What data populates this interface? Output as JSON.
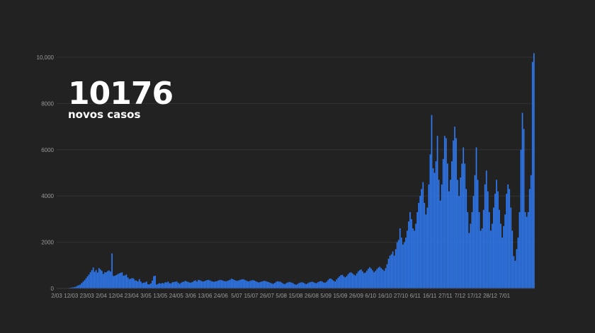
{
  "headline": {
    "value": "10176",
    "label": "novos casos"
  },
  "colors": {
    "background": "#222223",
    "bar": "#2f7bf5",
    "grid": "#333336",
    "tick": "#9a9a9a"
  },
  "chart_data": {
    "type": "bar",
    "title": "",
    "xlabel": "",
    "ylabel": "",
    "ylim": [
      0,
      10400
    ],
    "grid": true,
    "legend": "none",
    "y_ticks": [
      "0",
      "2000",
      "4000",
      "6000",
      "8000",
      "10,000"
    ],
    "y_tick_values": [
      0,
      2000,
      4000,
      6000,
      8000,
      10000
    ],
    "x_tick_labels": [
      "2/03",
      "12/03",
      "23/03",
      "2/04",
      "12/04",
      "23/04",
      "3/05",
      "13/05",
      "24/05",
      "3/06",
      "13/06",
      "24/06",
      "5/07",
      "15/07",
      "26/07",
      "5/08",
      "15/08",
      "26/08",
      "5/09",
      "15/09",
      "26/09",
      "6/10",
      "16/10",
      "27/10",
      "6/11",
      "16/11",
      "27/11",
      "7/12",
      "17/12",
      "28/12",
      "7/01"
    ],
    "x_tick_day_index": [
      0,
      10,
      21,
      31,
      41,
      52,
      62,
      72,
      83,
      93,
      103,
      114,
      125,
      135,
      146,
      156,
      166,
      177,
      187,
      197,
      208,
      218,
      228,
      239,
      249,
      259,
      270,
      280,
      290,
      301,
      311
    ],
    "series": [
      {
        "values": [
          2,
          2,
          2,
          3,
          4,
          6,
          8,
          12,
          20,
          30,
          40,
          50,
          60,
          78,
          112,
          142,
          168,
          238,
          296,
          360,
          440,
          520,
          600,
          700,
          790,
          906,
          720,
          800,
          690,
          880,
          820,
          760,
          630,
          700,
          700,
          750,
          780,
          730,
          1516,
          540,
          550,
          580,
          620,
          650,
          680,
          700,
          550,
          570,
          600,
          480,
          410,
          420,
          450,
          430,
          350,
          340,
          300,
          400,
          300,
          230,
          250,
          260,
          300,
          180,
          180,
          220,
          340,
          530,
          550,
          170,
          200,
          230,
          210,
          240,
          220,
          270,
          260,
          300,
          230,
          220,
          270,
          280,
          290,
          300,
          250,
          200,
          250,
          280,
          300,
          330,
          300,
          280,
          250,
          260,
          280,
          330,
          350,
          300,
          370,
          360,
          330,
          300,
          310,
          340,
          360,
          370,
          350,
          320,
          300,
          290,
          310,
          320,
          350,
          370,
          360,
          340,
          320,
          310,
          330,
          350,
          380,
          420,
          400,
          370,
          340,
          330,
          350,
          370,
          390,
          400,
          380,
          350,
          320,
          310,
          330,
          350,
          360,
          340,
          310,
          280,
          260,
          280,
          300,
          320,
          330,
          310,
          290,
          270,
          240,
          220,
          200,
          240,
          290,
          310,
          300,
          290,
          250,
          210,
          190,
          230,
          260,
          280,
          270,
          250,
          220,
          180,
          160,
          200,
          240,
          260,
          270,
          250,
          210,
          190,
          230,
          260,
          280,
          290,
          270,
          240,
          230,
          270,
          300,
          320,
          300,
          260,
          250,
          290,
          360,
          420,
          430,
          380,
          330,
          300,
          390,
          460,
          520,
          580,
          590,
          520,
          480,
          540,
          620,
          680,
          700,
          650,
          600,
          560,
          650,
          740,
          790,
          820,
          740,
          660,
          690,
          770,
          850,
          920,
          860,
          780,
          700,
          760,
          840,
          900,
          940,
          880,
          820,
          760,
          880,
          1050,
          1280,
          1420,
          1480,
          1600,
          1420,
          1700,
          2000,
          2100,
          2600,
          2200,
          1900,
          2000,
          2200,
          2500,
          2900,
          3300,
          3000,
          2600,
          2500,
          2800,
          3300,
          3700,
          4000,
          4300,
          4600,
          3700,
          3200,
          3500,
          4500,
          5800,
          7500,
          5200,
          5000,
          5500,
          6600,
          4700,
          3800,
          4500,
          5600,
          6600,
          6500,
          5400,
          4200,
          4700,
          5500,
          6400,
          7000,
          6500,
          4700,
          4000,
          4800,
          5400,
          6100,
          5400,
          4300,
          3300,
          2400,
          2800,
          3300,
          4000,
          4900,
          6100,
          4700,
          3300,
          2500,
          2600,
          3400,
          4500,
          5100,
          4200,
          3300,
          2500,
          2800,
          3500,
          4100,
          4700,
          4200,
          3400,
          2800,
          2200,
          2700,
          3200,
          4100,
          4500,
          4300,
          3500,
          2500,
          1400,
          1200,
          1700,
          2200,
          3300,
          6000,
          7600,
          6900,
          3300,
          3100,
          3300,
          4300,
          4900,
          9800,
          10176
        ]
      }
    ]
  }
}
